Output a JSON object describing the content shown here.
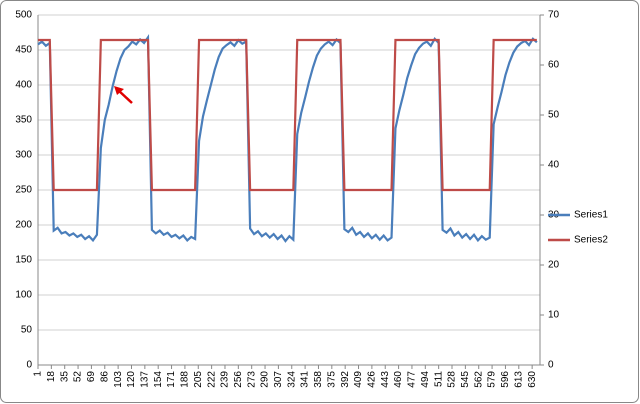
{
  "chart_data": {
    "type": "line",
    "x": [
      1,
      6,
      11,
      16,
      21,
      26,
      31,
      36,
      41,
      46,
      51,
      56,
      61,
      66,
      71,
      76,
      81,
      86,
      91,
      96,
      101,
      106,
      111,
      116,
      121,
      126,
      131,
      136,
      141,
      146,
      151,
      156,
      161,
      166,
      171,
      176,
      181,
      186,
      191,
      196,
      201,
      206,
      211,
      216,
      221,
      226,
      231,
      236,
      241,
      246,
      251,
      256,
      261,
      266,
      271,
      276,
      281,
      286,
      291,
      296,
      301,
      306,
      311,
      316,
      321,
      326,
      331,
      336,
      341,
      346,
      351,
      356,
      361,
      366,
      371,
      376,
      381,
      386,
      391,
      396,
      401,
      406,
      411,
      416,
      421,
      426,
      431,
      436,
      441,
      446,
      451,
      456,
      461,
      466,
      471,
      476,
      481,
      486,
      491,
      496,
      501,
      506,
      511,
      516,
      521,
      526,
      531,
      536,
      541,
      546,
      551,
      556,
      561,
      566,
      571,
      576,
      581,
      586,
      591,
      596,
      601,
      606,
      611,
      616,
      621,
      626,
      631,
      636
    ],
    "xlim": [
      1,
      640
    ],
    "xticks": [
      1,
      18,
      35,
      52,
      69,
      86,
      103,
      120,
      137,
      154,
      171,
      188,
      205,
      222,
      239,
      256,
      273,
      290,
      307,
      324,
      341,
      358,
      375,
      392,
      409,
      426,
      443,
      460,
      477,
      494,
      511,
      528,
      545,
      562,
      579,
      596,
      613,
      630
    ],
    "ylim": [
      0,
      500
    ],
    "yticks": [
      0,
      50,
      100,
      150,
      200,
      250,
      300,
      350,
      400,
      450,
      500
    ],
    "y2lim": [
      0,
      70
    ],
    "y2ticks": [
      0,
      10,
      20,
      30,
      40,
      50,
      60,
      70
    ],
    "grid": true,
    "legend": "right",
    "series": [
      {
        "name": "Series1",
        "color": "#4a7ebb",
        "values": [
          458,
          462,
          456,
          460,
          192,
          196,
          188,
          190,
          185,
          188,
          183,
          186,
          180,
          184,
          178,
          186,
          310,
          350,
          372,
          398,
          420,
          438,
          450,
          455,
          462,
          458,
          465,
          460,
          468,
          193,
          188,
          192,
          186,
          189,
          183,
          186,
          181,
          185,
          178,
          183,
          180,
          320,
          355,
          378,
          400,
          422,
          440,
          452,
          457,
          461,
          456,
          464,
          459,
          462,
          195,
          187,
          191,
          184,
          188,
          182,
          187,
          180,
          185,
          177,
          184,
          179,
          330,
          360,
          382,
          405,
          425,
          442,
          452,
          458,
          462,
          457,
          465,
          460,
          194,
          190,
          196,
          186,
          190,
          183,
          188,
          181,
          186,
          179,
          185,
          178,
          182,
          338,
          364,
          386,
          410,
          428,
          444,
          453,
          459,
          462,
          456,
          466,
          460,
          193,
          189,
          195,
          185,
          190,
          182,
          187,
          180,
          186,
          178,
          184,
          179,
          182,
          344,
          368,
          390,
          414,
          432,
          446,
          455,
          460,
          463,
          457,
          466,
          461
        ]
      },
      {
        "name": "Series2",
        "color": "#be4b48",
        "axis": "y2",
        "values": [
          65,
          65,
          65,
          65,
          35,
          35,
          35,
          35,
          35,
          35,
          35,
          35,
          35,
          35,
          35,
          35,
          65,
          65,
          65,
          65,
          65,
          65,
          65,
          65,
          65,
          65,
          65,
          65,
          65,
          35,
          35,
          35,
          35,
          35,
          35,
          35,
          35,
          35,
          35,
          35,
          35,
          65,
          65,
          65,
          65,
          65,
          65,
          65,
          65,
          65,
          65,
          65,
          65,
          65,
          35,
          35,
          35,
          35,
          35,
          35,
          35,
          35,
          35,
          35,
          35,
          35,
          65,
          65,
          65,
          65,
          65,
          65,
          65,
          65,
          65,
          65,
          65,
          65,
          35,
          35,
          35,
          35,
          35,
          35,
          35,
          35,
          35,
          35,
          35,
          35,
          35,
          65,
          65,
          65,
          65,
          65,
          65,
          65,
          65,
          65,
          65,
          65,
          65,
          35,
          35,
          35,
          35,
          35,
          35,
          35,
          35,
          35,
          35,
          35,
          35,
          35,
          65,
          65,
          65,
          65,
          65,
          65,
          65,
          65,
          65,
          65,
          65,
          65
        ]
      }
    ]
  }
}
